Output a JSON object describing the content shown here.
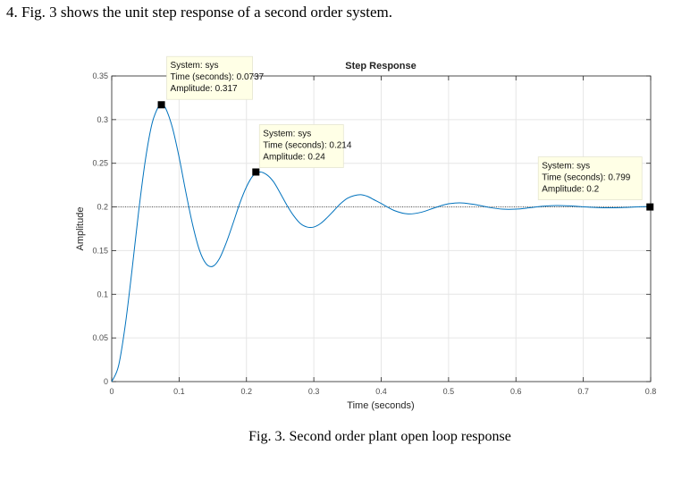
{
  "question": "4.  Fig. 3 shows the unit step response of a second order system.",
  "caption": "Fig. 3.  Second order plant open loop response",
  "chart_data": {
    "type": "line",
    "title": "Step Response",
    "xlabel": "Time (seconds)",
    "ylabel": "Amplitude",
    "xlim": [
      0,
      0.8
    ],
    "ylim": [
      0,
      0.35
    ],
    "xticks": [
      0,
      0.1,
      0.2,
      0.3,
      0.4,
      0.5,
      0.6,
      0.7,
      0.8
    ],
    "xtick_labels": [
      "0",
      "0.1",
      "0.2",
      "0.3",
      "0.4",
      "0.5",
      "0.6",
      "0.7",
      "0.8"
    ],
    "yticks": [
      0,
      0.05,
      0.1,
      0.15,
      0.2,
      0.25,
      0.3,
      0.35
    ],
    "ytick_labels": [
      "0",
      "0.05",
      "0.1",
      "0.15",
      "0.2",
      "0.25",
      "0.3",
      "0.35"
    ],
    "grid": true,
    "line_color": "#0072bd",
    "steady_state": 0.2,
    "series": [
      {
        "x": [
          0,
          0.01,
          0.02,
          0.03,
          0.04,
          0.05,
          0.06,
          0.07,
          0.0737,
          0.08,
          0.09,
          0.1,
          0.11,
          0.12,
          0.13,
          0.14,
          0.15,
          0.16,
          0.17,
          0.18,
          0.19,
          0.2,
          0.21,
          0.22,
          0.23,
          0.24,
          0.25,
          0.26,
          0.27,
          0.28,
          0.29,
          0.3,
          0.31,
          0.32,
          0.33,
          0.34,
          0.35,
          0.36,
          0.37,
          0.38,
          0.39,
          0.4,
          0.42,
          0.44,
          0.46,
          0.48,
          0.5,
          0.52,
          0.54,
          0.56,
          0.58,
          0.6,
          0.62,
          0.64,
          0.66,
          0.68,
          0.7,
          0.72,
          0.74,
          0.76,
          0.78,
          0.8
        ],
        "y": [
          0,
          0.0176,
          0.064,
          0.127,
          0.195,
          0.254,
          0.296,
          0.316,
          0.317,
          0.313,
          0.291,
          0.257,
          0.217,
          0.18,
          0.151,
          0.135,
          0.132,
          0.141,
          0.159,
          0.181,
          0.204,
          0.223,
          0.236,
          0.24,
          0.237,
          0.229,
          0.216,
          0.202,
          0.19,
          0.181,
          0.177,
          0.177,
          0.181,
          0.188,
          0.196,
          0.204,
          0.21,
          0.213,
          0.214,
          0.212,
          0.208,
          0.204,
          0.1957,
          0.192,
          0.194,
          0.1992,
          0.2036,
          0.2046,
          0.2026,
          0.1995,
          0.1975,
          0.1975,
          0.199,
          0.2008,
          0.2016,
          0.2012,
          0.2002,
          0.1993,
          0.199,
          0.1994,
          0.2001,
          0.2005
        ]
      }
    ],
    "datatips": [
      {
        "system": "System: sys",
        "time": "Time (seconds): 0.0737",
        "amplitude": "Amplitude: 0.317",
        "x": 0.0737,
        "y": 0.317
      },
      {
        "system": "System: sys",
        "time": "Time (seconds): 0.214",
        "amplitude": "Amplitude: 0.24",
        "x": 0.214,
        "y": 0.24
      },
      {
        "system": "System: sys",
        "time": "Time (seconds): 0.799",
        "amplitude": "Amplitude: 0.2",
        "x": 0.799,
        "y": 0.2
      }
    ]
  }
}
